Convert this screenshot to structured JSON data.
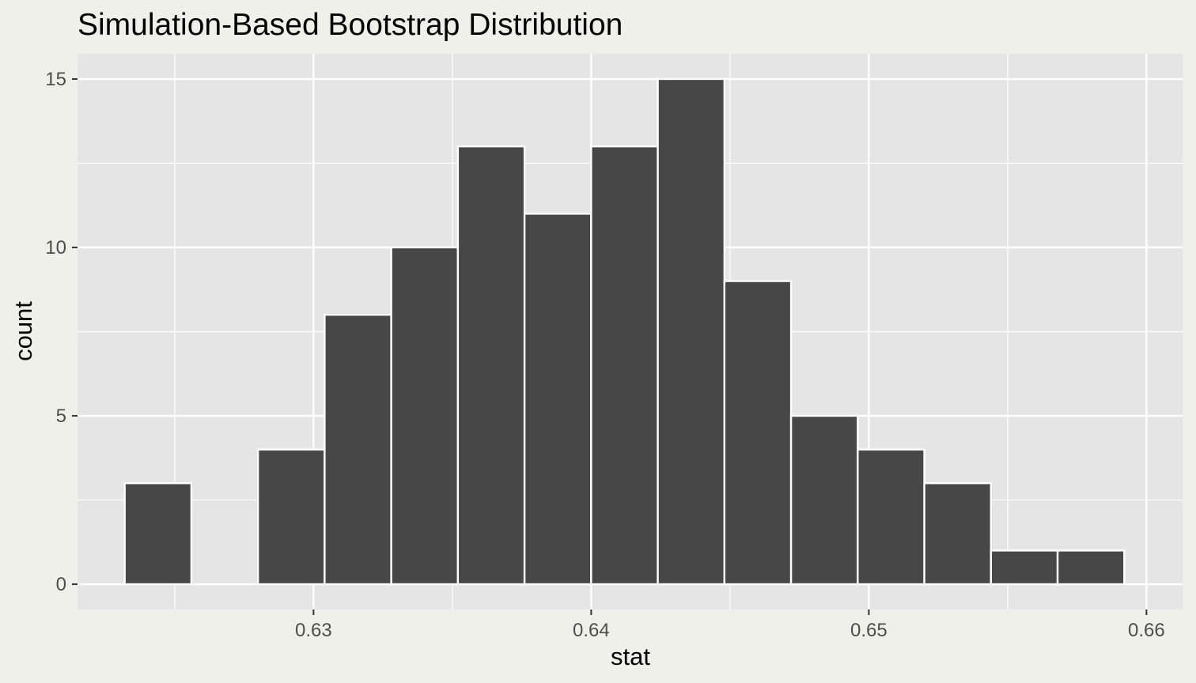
{
  "chart_data": {
    "type": "bar",
    "title": "Simulation-Based Bootstrap Distribution",
    "xlabel": "stat",
    "ylabel": "count",
    "bins": [
      {
        "x0": 0.6232,
        "x1": 0.6256,
        "count": 3
      },
      {
        "x0": 0.6256,
        "x1": 0.628,
        "count": 0
      },
      {
        "x0": 0.628,
        "x1": 0.6304,
        "count": 4
      },
      {
        "x0": 0.6304,
        "x1": 0.6328,
        "count": 8
      },
      {
        "x0": 0.6328,
        "x1": 0.6352,
        "count": 10
      },
      {
        "x0": 0.6352,
        "x1": 0.6376,
        "count": 13
      },
      {
        "x0": 0.6376,
        "x1": 0.64,
        "count": 11
      },
      {
        "x0": 0.64,
        "x1": 0.6424,
        "count": 13
      },
      {
        "x0": 0.6424,
        "x1": 0.6448,
        "count": 15
      },
      {
        "x0": 0.6448,
        "x1": 0.6472,
        "count": 9
      },
      {
        "x0": 0.6472,
        "x1": 0.6496,
        "count": 5
      },
      {
        "x0": 0.6496,
        "x1": 0.652,
        "count": 4
      },
      {
        "x0": 0.652,
        "x1": 0.6544,
        "count": 3
      },
      {
        "x0": 0.6544,
        "x1": 0.6568,
        "count": 1
      },
      {
        "x0": 0.6568,
        "x1": 0.6592,
        "count": 1
      }
    ],
    "xlim": [
      0.6215,
      0.6613
    ],
    "ylim": [
      -0.75,
      15.75
    ],
    "x_ticks": [
      0.63,
      0.64,
      0.65,
      0.66
    ],
    "x_tick_labels": [
      "0.63",
      "0.64",
      "0.65",
      "0.66"
    ],
    "y_ticks": [
      0,
      5,
      10,
      15
    ],
    "y_tick_labels": [
      "0",
      "5",
      "10",
      "15"
    ],
    "grid": true,
    "colors": {
      "background": "#f0f0eb",
      "panel": "#e5e5e5",
      "grid": "#ffffff",
      "bar_fill": "#474747",
      "bar_stroke": "#ffffff",
      "tick": "#333333"
    }
  }
}
